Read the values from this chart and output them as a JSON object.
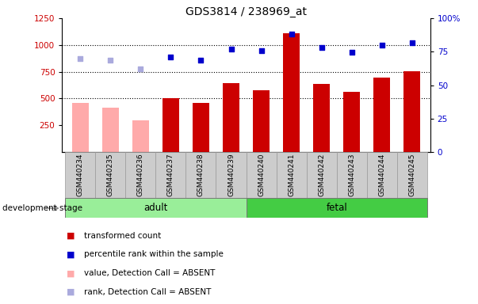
{
  "title": "GDS3814 / 238969_at",
  "samples": [
    "GSM440234",
    "GSM440235",
    "GSM440236",
    "GSM440237",
    "GSM440238",
    "GSM440239",
    "GSM440240",
    "GSM440241",
    "GSM440242",
    "GSM440243",
    "GSM440244",
    "GSM440245"
  ],
  "bar_values": [
    460,
    415,
    295,
    505,
    460,
    640,
    580,
    1110,
    635,
    560,
    695,
    755
  ],
  "bar_absent": [
    true,
    true,
    true,
    false,
    false,
    false,
    false,
    false,
    false,
    false,
    false,
    false
  ],
  "rank_values": [
    870,
    855,
    775,
    885,
    855,
    965,
    950,
    1105,
    975,
    935,
    1000,
    1020
  ],
  "rank_absent": [
    true,
    true,
    true,
    false,
    false,
    false,
    false,
    false,
    false,
    false,
    false,
    false
  ],
  "adult_count": 6,
  "fetal_count": 6,
  "color_bar_present": "#cc0000",
  "color_bar_absent": "#ffaaaa",
  "color_rank_present": "#0000cc",
  "color_rank_absent": "#aaaadd",
  "ylim_left": [
    0,
    1250
  ],
  "yticks_left": [
    250,
    500,
    750,
    1000,
    1250
  ],
  "yticks_right_vals": [
    0,
    25,
    50,
    75,
    100
  ],
  "yticks_right_labels": [
    "0",
    "25",
    "50",
    "75",
    "100%"
  ],
  "grid_values": [
    500,
    750,
    1000
  ],
  "bar_width": 0.55,
  "adult_color": "#99ee99",
  "fetal_color": "#44cc44",
  "background_color": "#ffffff",
  "gray_box_color": "#cccccc",
  "legend_items": [
    {
      "label": "transformed count",
      "color": "#cc0000"
    },
    {
      "label": "percentile rank within the sample",
      "color": "#0000cc"
    },
    {
      "label": "value, Detection Call = ABSENT",
      "color": "#ffaaaa"
    },
    {
      "label": "rank, Detection Call = ABSENT",
      "color": "#aaaadd"
    }
  ]
}
